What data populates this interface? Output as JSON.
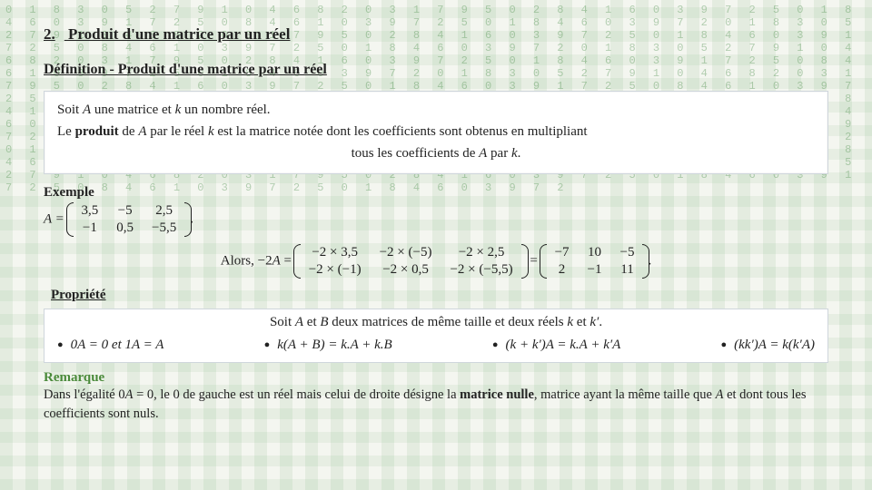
{
  "colors": {
    "page_bg": "#f4f6f0",
    "matrix_char": "rgba(70,140,70,0.38)",
    "box_bg": "#ffffff",
    "box_border": "#cfd6dc",
    "text": "#222222",
    "remarque": "#4a8a3a"
  },
  "typography": {
    "body_family": "Times New Roman",
    "body_size_pt": 12,
    "title_size_pt": 13,
    "math_family": "Cambria Math"
  },
  "section": {
    "number": "2.",
    "title": "Produit d'une matrice par un réel"
  },
  "definition": {
    "label": "Définition - Produit d'une matrice par un réel",
    "line1_pre": "Soit ",
    "line1_A": "A",
    "line1_mid": " une matrice et ",
    "line1_k": "k",
    "line1_post": " un nombre réel.",
    "line2_pre": "Le ",
    "line2_bold": "produit",
    "line2_mid1": " de ",
    "line2_A": "A",
    "line2_mid2": " par le réel ",
    "line2_k": "k",
    "line2_mid3": " est la matrice notée  ",
    "line2_tail": "dont les coefficients sont obtenus en multipliant",
    "line3_pre": "tous les coefficients de ",
    "line3_A": "A",
    "line3_mid": " par ",
    "line3_k": "k",
    "line3_post": "."
  },
  "example": {
    "label": "Exemple",
    "A_eq": "A =",
    "A_matrix": {
      "rows": [
        [
          "3,5",
          "−5",
          "2,5"
        ],
        [
          "−1",
          "0,5",
          "−5,5"
        ]
      ],
      "n_rows": 2,
      "n_cols": 3
    },
    "A_period": ".",
    "alors": "Alors, −2",
    "alors_A": "A",
    "eq": " = ",
    "step_matrix": {
      "rows": [
        [
          "−2 × 3,5",
          "−2 × (−5)",
          "−2 × 2,5"
        ],
        [
          "−2 × (−1)",
          "−2 × 0,5",
          "−2 × (−5,5)"
        ]
      ],
      "n_rows": 2,
      "n_cols": 3
    },
    "result_matrix": {
      "rows": [
        [
          "−7",
          "10",
          "−5"
        ],
        [
          "2",
          "−1",
          "11"
        ]
      ],
      "n_rows": 2,
      "n_cols": 3
    },
    "period": "."
  },
  "propriete": {
    "label": "Propriété",
    "intro_pre": "Soit ",
    "intro_A": "A",
    "intro_and": " et ",
    "intro_B": "B",
    "intro_mid": " deux matrices de même taille et deux réels ",
    "intro_k": "k",
    "intro_and2": " et ",
    "intro_kp": "k′",
    "intro_post": ".",
    "items": [
      "0A = 0 et 1A = A",
      "k(A + B) = k.A + k.B",
      "(k + k′)A = k.A + k′A",
      "(kk′)A = k(k′A)"
    ]
  },
  "remarque": {
    "label": "Remarque",
    "text_pre": "Dans l'égalité 0",
    "text_A1": "A",
    "text_mid1": " = 0, le 0 de gauche est un réel mais celui de droite désigne la ",
    "bold": "matrice nulle",
    "text_mid2": ", matrice ayant la même taille que ",
    "text_A2": "A",
    "text_post": " et dont tous les coefficients sont nuls."
  },
  "bg_chars": "0 1 8 3 0 5 2 7 9 1 0 4 6 8 2 0 3 1 7 9 5 0 2 8 4 1 6 0 3 9 7 2 5 0 1 8 4 6 0 3 9 1 7 2 5 0 8 4 6 1 0 3 9 7 2 5 0 1 8 4 6 0 3 9 7 2 0 1 8 3 0 5 2 7 9 1 0 4 6 8 2 0 3 1 7 9 5 0 2 8 4 1 6 0 3 9 7 2 5 0 1 8 4 6 0 3 9 1 7 2 5 0 8 4 6 1 0 3 9 7 2 5 0 1 8 4 6 0 3 9 7 2 0 1 8 3 0 5 2 7 9 1 0 4 6 8 2 0 3 1 7 9 5 0 2 8 4 1 6 0 3 9 7 2 5 0 1 8 4 6 0 3 9 1 7 2 5 0 8 4 6 1 0 3 9 7 2 5 0 1 8 4 6 0 3 9 7 2 0 1 8 3 0 5 2 7 9 1 0 4 6 8 2 0 3 1 7 9 5 0 2 8 4 1 6 0 3 9 7 2 5 0 1 8 4 6 0 3 9 1 7 2 5 0 8 4 6 1 0 3 9 7 2 5 0 1 8 4 6 0 3 9 7 2 0 1 8 3 0 5 2 7 9 1 0 4 6 8 2 0 3 1 7 9 5 0 2 8 4 1 6 0 3 9 7 2 5 0 1 8 4 6 0 3 9 1 7 2 5 0 8 4 6 1 0 3 9 7 2 5 0 1 8 4 6 0 3 9 7 2 0 1 8 3 0 5 2 7 9 1 0 4 6 8 2 0 3 1 7 9 5 0 2 8 4 1 6 0 3 9 7 2 5 0 1 8 4 6 0 3 9 1 7 2 5 0 8 4 6 1 0 3 9 7 2 5 0 1 8 4 6 0 3 9 7 2 0 1 8 3 0 5 2 7 9 1 0 4 6 8 2 0 3 1 7 9 5 0 2 8 4 1 6 0 3 9 7 2 5 0 1 8 4 6 0 3 9 1 7 2 5 0 8 4 6 1 0 3 9 7 2 5 0 1 8 4 6 0 3 9 7 2 0 1 8 3 0 5 2 7 9 1 0 4 6 8 2 0 3 1 7 9 5 0 2 8 4 1 6 0 3 9 7 2 5 0 1 8 4 6 0 3 9 1 7 2 5 0 8 4 6 1 0 3 9 7 2 5 0 1 8 4 6 0 3 9 7 2"
}
